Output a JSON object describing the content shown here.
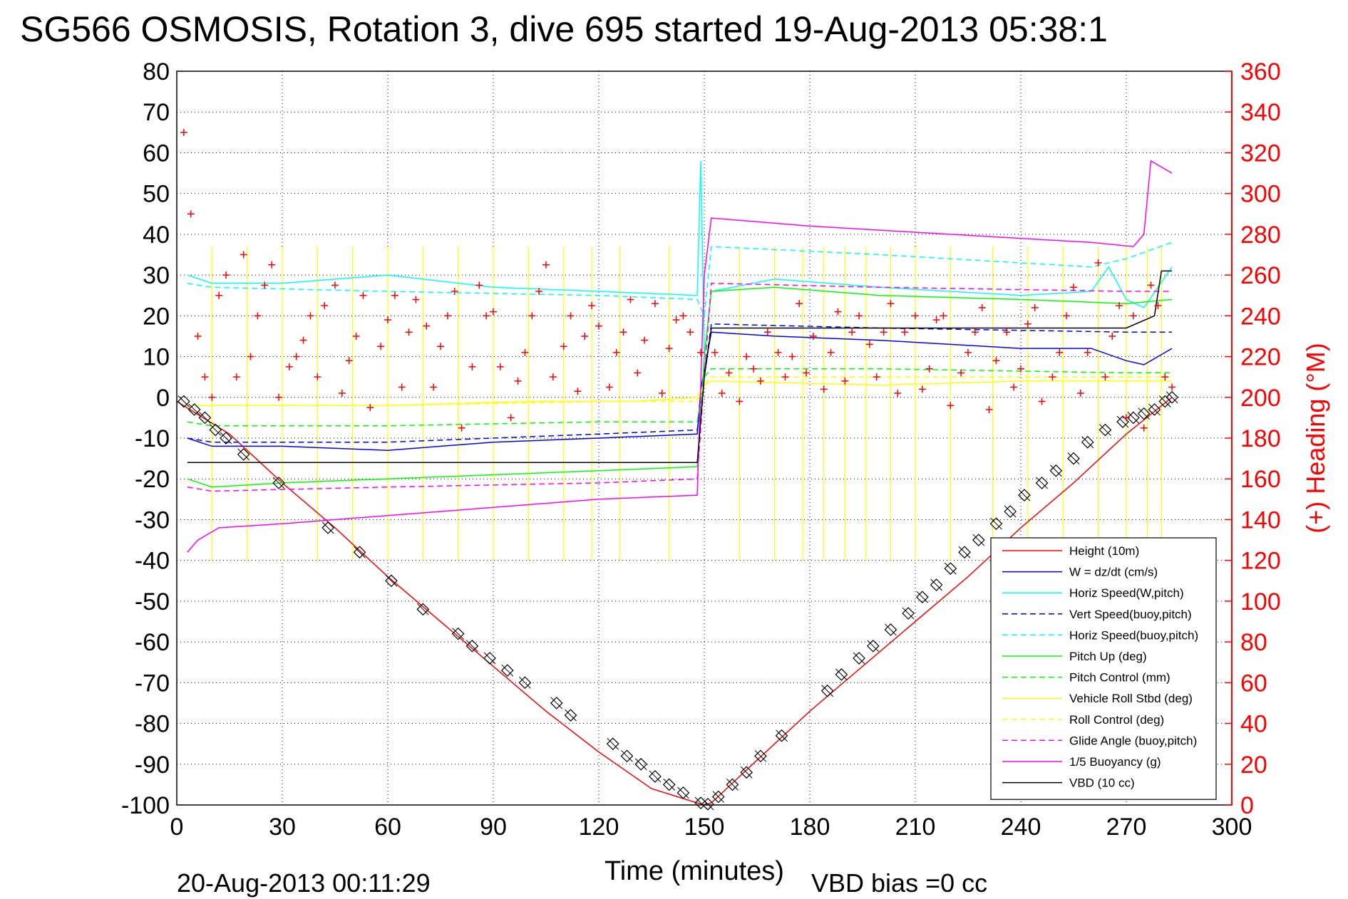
{
  "chart_data": {
    "type": "line",
    "title": "SG566 OSMOSIS, Rotation 3, dive 695 started 19-Aug-2013 05:38:1",
    "xlabel": "Time (minutes)",
    "ylabel": "",
    "y2label": "(+) Heading (°M)",
    "footer_left": "20-Aug-2013 00:11:29",
    "footer_right": "VBD bias =0 cc",
    "xlim": [
      0,
      300
    ],
    "ylim": [
      -100,
      80
    ],
    "y2lim": [
      0,
      360
    ],
    "x_ticks": [
      "0",
      "30",
      "60",
      "90",
      "120",
      "150",
      "180",
      "210",
      "240",
      "270",
      "300"
    ],
    "y_ticks": [
      "80",
      "70",
      "60",
      "50",
      "40",
      "30",
      "20",
      "10",
      "0",
      "-10",
      "-20",
      "-30",
      "-40",
      "-50",
      "-60",
      "-70",
      "-80",
      "-90",
      "-100"
    ],
    "y2_ticks": [
      "360",
      "340",
      "320",
      "300",
      "280",
      "260",
      "240",
      "220",
      "200",
      "180",
      "160",
      "140",
      "120",
      "100",
      "80",
      "60",
      "40",
      "20",
      "0"
    ],
    "grid": true,
    "legend_position": "bottom-right",
    "colors": {
      "red": "#ff0000",
      "blue": "#0000ff",
      "cyan": "#00ffff",
      "green": "#00ff00",
      "yellow": "#ffff00",
      "magenta": "#ff00ff",
      "black": "#000000"
    },
    "series": [
      {
        "name": "Height (10m)",
        "color": "#ff0000",
        "dash": false,
        "x": [
          0,
          15,
          30,
          45,
          60,
          75,
          90,
          105,
          120,
          135,
          148,
          150,
          152,
          165,
          180,
          195,
          210,
          225,
          240,
          255,
          270,
          283
        ],
        "y": [
          -1,
          -9,
          -21,
          -32,
          -44,
          -55,
          -66,
          -77,
          -87,
          -96,
          -99.5,
          -100,
          -99.5,
          -89,
          -77,
          -66,
          -55,
          -44,
          -32,
          -21,
          -9,
          0
        ]
      },
      {
        "name": "W = dz/dt (cm/s)",
        "color": "#0000ff",
        "dash": false,
        "x": [
          3,
          10,
          30,
          60,
          90,
          120,
          148,
          149,
          152,
          170,
          200,
          240,
          260,
          270,
          275,
          283
        ],
        "y": [
          -10,
          -12,
          -12,
          -13,
          -11,
          -10,
          -9,
          2,
          16,
          15,
          14,
          12,
          12,
          9,
          8,
          12
        ]
      },
      {
        "name": "Horiz Speed(W,pitch)",
        "color": "#00ffff",
        "dash": false,
        "x": [
          3,
          10,
          30,
          60,
          90,
          120,
          148,
          149,
          150,
          152,
          170,
          200,
          240,
          260,
          265,
          270,
          275,
          283
        ],
        "y": [
          30,
          28,
          28,
          30,
          27,
          26,
          25,
          58,
          10,
          26,
          29,
          27,
          25,
          26,
          32,
          24,
          22,
          32
        ]
      },
      {
        "name": "Vert Speed(buoy,pitch)",
        "color": "#0000ff",
        "dash": true,
        "x": [
          3,
          10,
          60,
          120,
          148,
          150,
          152,
          200,
          270,
          283
        ],
        "y": [
          -10,
          -11,
          -11,
          -9,
          -8,
          5,
          18,
          17,
          16,
          16
        ]
      },
      {
        "name": "Horiz Speed(buoy,pitch)",
        "color": "#00ffff",
        "dash": true,
        "x": [
          3,
          10,
          60,
          120,
          148,
          150,
          152,
          200,
          260,
          270,
          283
        ],
        "y": [
          28,
          27,
          26,
          25,
          24,
          20,
          37,
          35,
          32,
          34,
          38
        ]
      },
      {
        "name": "Pitch Up (deg)",
        "color": "#00ff00",
        "dash": false,
        "x": [
          3,
          10,
          30,
          60,
          90,
          120,
          148,
          149,
          150,
          152,
          170,
          200,
          240,
          270,
          283
        ],
        "y": [
          -20,
          -22,
          -21,
          -20,
          -19,
          -18,
          -17,
          -5,
          10,
          26,
          27,
          25,
          24,
          23,
          24
        ]
      },
      {
        "name": "Pitch Control (mm)",
        "color": "#00ff00",
        "dash": true,
        "x": [
          3,
          10,
          60,
          120,
          148,
          150,
          152,
          200,
          270,
          283
        ],
        "y": [
          -6,
          -7,
          -7,
          -6,
          -6,
          5,
          7,
          7,
          6,
          6
        ]
      },
      {
        "name": "Vehicle Roll Stbd (deg)",
        "color": "#ffff00",
        "dash": false,
        "x": [
          3,
          10,
          60,
          100,
          130,
          148,
          150,
          152,
          200,
          240,
          270,
          283
        ],
        "y": [
          -2,
          -2,
          -2,
          -1,
          -1,
          0,
          3,
          4,
          3,
          4,
          4,
          4
        ]
      },
      {
        "name": "Roll Control (deg)",
        "color": "#ffff00",
        "dash": true,
        "x": [
          3,
          10,
          60,
          120,
          148,
          150,
          152,
          200,
          240,
          270,
          283
        ],
        "y": [
          -2,
          -2,
          -2,
          -1,
          -1,
          3,
          5,
          5,
          5,
          5,
          5
        ]
      },
      {
        "name": "Glide Angle (buoy,pitch)",
        "color": "#ff00ff",
        "dash": true,
        "x": [
          3,
          10,
          60,
          120,
          148,
          150,
          152,
          200,
          270,
          283
        ],
        "y": [
          -22,
          -23,
          -22,
          -21,
          -20,
          5,
          28,
          27,
          26,
          26
        ]
      },
      {
        "name": "1/5 Buoyancy (g)",
        "color": "#ff00ff",
        "dash": false,
        "x": [
          3,
          6,
          12,
          30,
          60,
          90,
          120,
          148,
          150,
          152,
          180,
          220,
          260,
          272,
          275,
          277,
          283
        ],
        "y": [
          -38,
          -35,
          -32,
          -31,
          -29,
          -27,
          -25,
          -24,
          30,
          44,
          42,
          40,
          38,
          37,
          40,
          58,
          55
        ]
      },
      {
        "name": "VBD (10 cc)",
        "color": "#000000",
        "dash": false,
        "x": [
          3,
          10,
          60,
          120,
          148,
          150,
          152,
          200,
          270,
          278,
          280,
          283
        ],
        "y": [
          -16,
          -16,
          -16,
          -16,
          -16,
          5,
          17,
          17,
          17,
          20,
          31,
          31
        ]
      }
    ],
    "heading_points": {
      "name": "(+) Heading (°M)",
      "color": "#ff0000",
      "marker": "+",
      "x": [
        2,
        4,
        6,
        8,
        10,
        12,
        14,
        17,
        19,
        21,
        23,
        25,
        27,
        29,
        32,
        34,
        36,
        38,
        40,
        42,
        45,
        47,
        49,
        51,
        53,
        55,
        58,
        60,
        62,
        64,
        66,
        68,
        71,
        73,
        75,
        77,
        79,
        81,
        84,
        86,
        88,
        90,
        92,
        95,
        97,
        99,
        101,
        103,
        105,
        107,
        110,
        112,
        114,
        116,
        118,
        120,
        123,
        125,
        127,
        129,
        131,
        133,
        136,
        138,
        140,
        142,
        144,
        146,
        149,
        153,
        155,
        157,
        160,
        162,
        164,
        166,
        168,
        171,
        173,
        175,
        177,
        179,
        181,
        184,
        186,
        188,
        190,
        192,
        194,
        197,
        199,
        201,
        203,
        205,
        207,
        210,
        212,
        214,
        216,
        218,
        220,
        223,
        225,
        227,
        229,
        231,
        233,
        236,
        238,
        240,
        242,
        244,
        246,
        249,
        251,
        253,
        255,
        257,
        259,
        262,
        264,
        266,
        268,
        270,
        272,
        275,
        277,
        279,
        281,
        283
      ],
      "y": [
        330,
        290,
        230,
        210,
        200,
        250,
        260,
        210,
        270,
        220,
        240,
        255,
        265,
        200,
        215,
        220,
        228,
        240,
        210,
        245,
        255,
        202,
        218,
        230,
        250,
        195,
        225,
        238,
        250,
        205,
        232,
        248,
        235,
        205,
        225,
        240,
        252,
        185,
        215,
        255,
        240,
        242,
        215,
        190,
        208,
        222,
        240,
        252,
        265,
        210,
        225,
        240,
        203,
        230,
        245,
        235,
        205,
        222,
        232,
        248,
        212,
        228,
        246,
        202,
        224,
        238,
        240,
        232,
        222,
        222,
        202,
        212,
        198,
        220,
        214,
        208,
        232,
        222,
        210,
        220,
        246,
        212,
        230,
        204,
        222,
        242,
        208,
        232,
        240,
        226,
        210,
        232,
        246,
        202,
        232,
        240,
        204,
        214,
        238,
        240,
        196,
        212,
        222,
        232,
        244,
        194,
        218,
        232,
        205,
        214,
        236,
        244,
        198,
        210,
        222,
        240,
        254,
        202,
        222,
        266,
        210,
        230,
        245,
        190,
        240,
        185,
        255,
        245,
        210,
        205
      ]
    },
    "vbd_markers": {
      "marker": "diamond",
      "x": [
        2,
        5,
        8,
        11,
        14,
        19,
        29,
        43,
        52,
        61,
        70,
        80,
        84,
        89,
        94,
        99,
        108,
        112,
        124,
        128,
        132,
        136,
        140,
        144,
        149,
        151,
        154,
        158,
        162,
        166,
        172,
        185,
        189,
        194,
        198,
        203,
        208,
        212,
        216,
        220,
        224,
        228,
        233,
        237,
        241,
        246,
        250,
        255,
        259,
        264,
        269,
        272,
        275,
        278,
        281,
        283
      ],
      "y": [
        -1,
        -3,
        -5,
        -8,
        -10,
        -14,
        -21,
        -32,
        -38,
        -45,
        -52,
        -58,
        -61,
        -64,
        -67,
        -70,
        -75,
        -78,
        -85,
        -88,
        -90,
        -93,
        -95,
        -97,
        -99.5,
        -99.8,
        -98,
        -95,
        -92,
        -88,
        -83,
        -72,
        -68,
        -64,
        -61,
        -57,
        -53,
        -49,
        -46,
        -42,
        -38,
        -35,
        -31,
        -28,
        -24,
        -21,
        -18,
        -15,
        -11,
        -8,
        -6,
        -5,
        -4,
        -3,
        -1,
        0
      ]
    },
    "roll_spikes": {
      "color": "#ffff00",
      "x": [
        10,
        20,
        30,
        40,
        50,
        60,
        70,
        80,
        90,
        100,
        110,
        118,
        126,
        140,
        160,
        170,
        178,
        184,
        190,
        196,
        203,
        210,
        220,
        232,
        242,
        252,
        262,
        270,
        276,
        280
      ],
      "y_low": [
        -40,
        -40,
        -40,
        -40,
        -40,
        -40,
        -40,
        -40,
        -40,
        -40,
        -40,
        -40,
        -40,
        -40,
        -40,
        -40,
        -40,
        -40,
        -40,
        -40,
        -40,
        -40,
        -40,
        -40,
        -40,
        -40,
        -40,
        -40,
        -40,
        -40
      ],
      "y_high": [
        37,
        37,
        37,
        37,
        37,
        37,
        37,
        37,
        37,
        37,
        37,
        37,
        37,
        37,
        37,
        37,
        37,
        37,
        37,
        37,
        37,
        37,
        37,
        37,
        37,
        37,
        37,
        37,
        37,
        37
      ]
    }
  }
}
